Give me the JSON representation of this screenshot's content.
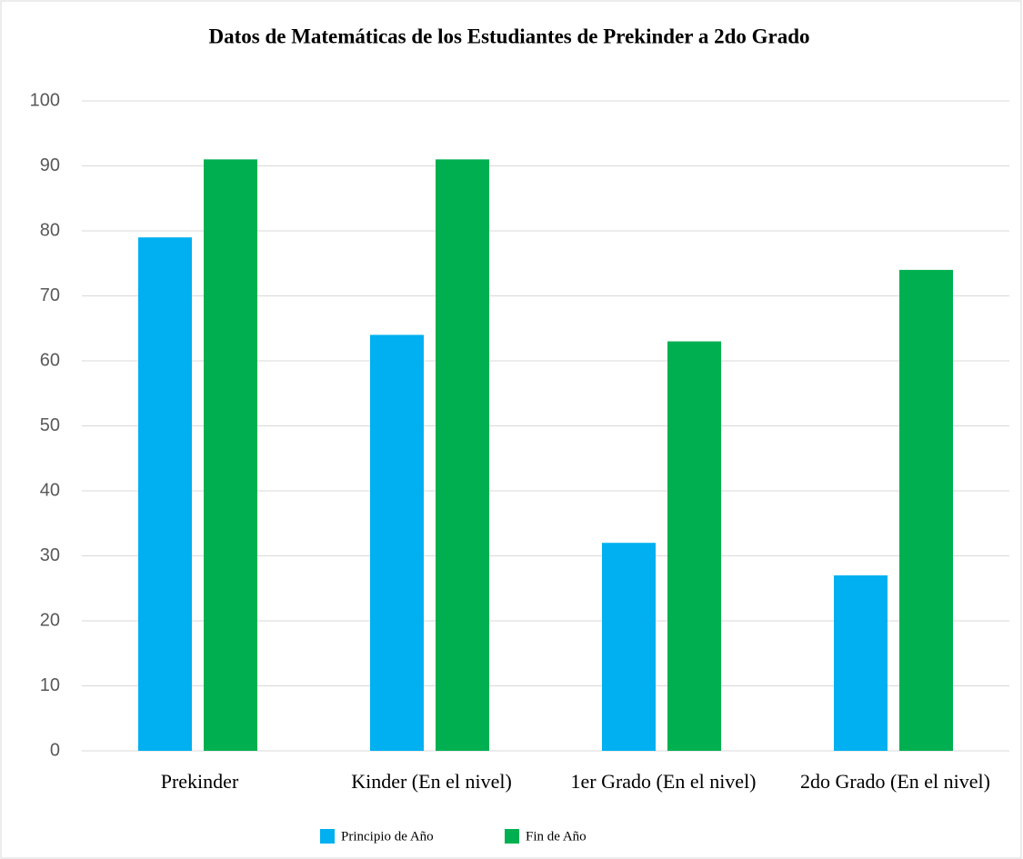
{
  "chart_data": {
    "type": "bar",
    "title": "Datos de Matemáticas de los Estudiantes de Prekinder a 2do Grado",
    "categories": [
      "Prekinder",
      "Kinder (En el nivel)",
      "1er Grado (En el nivel)",
      "2do Grado (En el nivel)"
    ],
    "series": [
      {
        "name": "Principio de Año",
        "color": "#00b0f0",
        "values": [
          79,
          64,
          32,
          27
        ]
      },
      {
        "name": "Fin de Año",
        "color": "#00b050",
        "values": [
          91,
          91,
          63,
          74
        ]
      }
    ],
    "ylim": [
      0,
      100
    ],
    "yticks": [
      0,
      10,
      20,
      30,
      40,
      50,
      60,
      70,
      80,
      90,
      100
    ],
    "grid": true,
    "legend": "bottom"
  }
}
